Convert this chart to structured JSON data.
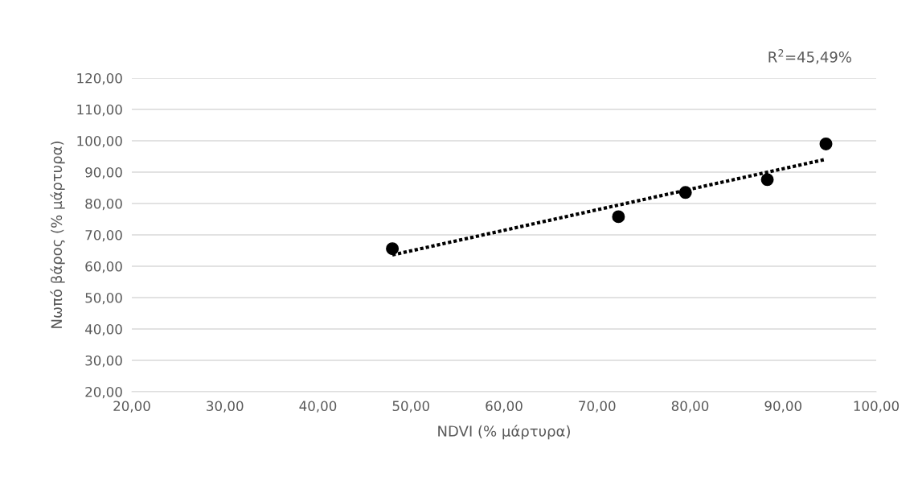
{
  "chart_data": {
    "type": "scatter",
    "xlabel": "NDVI (% μάρτυρα)",
    "ylabel": "Νωπό βάρος (% μάρτυρα)",
    "series": [
      {
        "color": "#000000",
        "x": [
          48.0,
          72.3,
          79.5,
          88.3,
          94.6
        ],
        "values": [
          65.6,
          75.8,
          83.5,
          87.6,
          99.0
        ],
        "marker": "circle"
      },
      {
        "type": "line",
        "color": "#000000",
        "x": [
          48.0,
          94.6
        ],
        "values": [
          63.6,
          94.1
        ],
        "line_style": "dotted",
        "marker": "none"
      }
    ],
    "annotations": [
      "R$^{2}$=45,49%"
    ],
    "xlim": [
      20,
      100
    ],
    "ylim": [
      20,
      120
    ],
    "xticks": [
      {
        "value": 20,
        "label": "20,00"
      },
      {
        "value": 30,
        "label": "30,00"
      },
      {
        "value": 40,
        "label": "40,00"
      },
      {
        "value": 50,
        "label": "50,00"
      },
      {
        "value": 60,
        "label": "60,00"
      },
      {
        "value": 70,
        "label": "70,00"
      },
      {
        "value": 80,
        "label": "80,00"
      },
      {
        "value": 90,
        "label": "90,00"
      },
      {
        "value": 100,
        "label": "100,00"
      }
    ],
    "yticks": [
      {
        "value": 20,
        "label": "20,00"
      },
      {
        "value": 30,
        "label": "30,00"
      },
      {
        "value": 40,
        "label": "40,00"
      },
      {
        "value": 50,
        "label": "50,00"
      },
      {
        "value": 60,
        "label": "60,00"
      },
      {
        "value": 70,
        "label": "70,00"
      },
      {
        "value": 80,
        "label": "80,00"
      },
      {
        "value": 90,
        "label": "90,00"
      },
      {
        "value": 100,
        "label": "100,00"
      },
      {
        "value": 110,
        "label": "110,00"
      },
      {
        "value": 120,
        "label": "120,00"
      }
    ],
    "grid": "y",
    "legend": false
  }
}
